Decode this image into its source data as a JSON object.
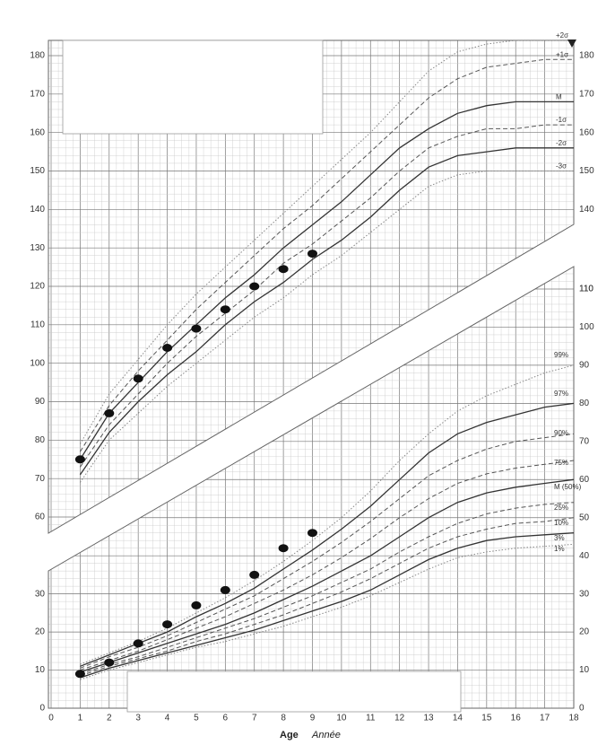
{
  "chart_data": {
    "type": "line",
    "title": "",
    "xlabel": "Age",
    "xlabel_alt": "Année",
    "xlim": [
      0,
      18
    ],
    "x_ticks": [
      "0",
      "1",
      "2",
      "3",
      "4",
      "5",
      "6",
      "7",
      "8",
      "9",
      "10",
      "11",
      "12",
      "13",
      "14",
      "15",
      "16",
      "17",
      "18"
    ],
    "grid": true,
    "panels": [
      {
        "id": "height",
        "ylim": [
          55,
          185
        ],
        "left_ticks": [
          "60",
          "70",
          "80",
          "90",
          "100",
          "110",
          "120",
          "130",
          "140",
          "150",
          "160",
          "170",
          "180"
        ],
        "right_ticks": [
          "110",
          "140",
          "150",
          "160",
          "170",
          "180"
        ],
        "extra_right_ticks_lower": [
          "40",
          "50",
          "60",
          "70",
          "80",
          "90",
          "100",
          "110"
        ],
        "x": [
          1,
          2,
          3,
          4,
          5,
          6,
          7,
          8,
          9,
          10,
          11,
          12,
          13,
          14,
          15,
          16,
          17,
          18
        ],
        "series": [
          {
            "name": "+2σ",
            "values": [
              79,
              92,
              101,
              110,
              118,
              125,
              132,
              139,
              146,
              153,
              160,
              168,
              176,
              181,
              183,
              184,
              184,
              184
            ]
          },
          {
            "name": "+1σ",
            "values": [
              77,
              89,
              98,
              106,
              114,
              121,
              128,
              135,
              141,
              148,
              155,
              162,
              169,
              174,
              177,
              178,
              179,
              179
            ]
          },
          {
            "name": "M",
            "values": [
              75,
              87,
              95,
              103,
              110,
              117,
              123,
              130,
              136,
              142,
              149,
              156,
              161,
              165,
              167,
              168,
              168,
              168
            ]
          },
          {
            "name": "-1σ",
            "values": [
              73,
              84,
              92,
              100,
              107,
              113,
              119,
              126,
              131,
              137,
              143,
              150,
              156,
              159,
              161,
              161,
              162,
              162
            ]
          },
          {
            "name": "-2σ",
            "values": [
              71,
              82,
              90,
              97,
              103,
              110,
              116,
              121,
              127,
              132,
              138,
              145,
              151,
              154,
              155,
              156,
              156,
              156
            ]
          },
          {
            "name": "-3σ",
            "values": [
              69,
              80,
              87,
              94,
              100,
              106,
              112,
              117,
              123,
              128,
              134,
              140,
              146,
              149,
              150,
              150,
              150,
              150
            ]
          }
        ],
        "points": {
          "x": [
            1,
            2,
            3,
            4,
            5,
            6,
            7,
            8,
            9
          ],
          "y": [
            75,
            87,
            96,
            104,
            109,
            114,
            120,
            124.5,
            128.5
          ]
        }
      },
      {
        "id": "weight",
        "ylim": [
          0,
          110
        ],
        "left_ticks": [
          "0",
          "10",
          "20",
          "30"
        ],
        "right_ticks": [
          "0",
          "10",
          "20",
          "30",
          "40",
          "50",
          "60",
          "70",
          "80",
          "90",
          "100",
          "110"
        ],
        "x": [
          1,
          2,
          3,
          4,
          5,
          6,
          7,
          8,
          9,
          10,
          11,
          12,
          13,
          14,
          15,
          16,
          17,
          18
        ],
        "series": [
          {
            "name": "99%",
            "values": [
              11.5,
              14.5,
              17.5,
              21,
              25,
              29,
              33.5,
              38.5,
              44,
              50,
              57,
              65,
              72,
              78,
              82,
              85,
              88,
              90
            ]
          },
          {
            "name": "97%",
            "values": [
              11,
              14,
              17,
              20,
              24,
              27.5,
              31.5,
              36.5,
              41.5,
              47,
              53,
              60,
              67,
              72,
              75,
              77,
              79,
              80
            ]
          },
          {
            "name": "90%",
            "values": [
              10.5,
              13.5,
              16,
              19,
              22.5,
              26,
              29.5,
              34,
              38.5,
              43.5,
              49,
              55,
              61,
              65,
              68,
              70,
              71,
              72
            ]
          },
          {
            "name": "75%",
            "values": [
              10,
              12.5,
              15,
              18,
              21,
              24,
              27.5,
              31,
              35,
              39.5,
              44.5,
              50,
              55,
              59,
              61.5,
              63,
              64,
              65
            ]
          },
          {
            "name": "M (50%)",
            "values": [
              9.5,
              12,
              14.5,
              17,
              19.5,
              22,
              25,
              28.5,
              32,
              36,
              40,
              45,
              50,
              54,
              56.5,
              58,
              59,
              60
            ]
          },
          {
            "name": "25%",
            "values": [
              9,
              11.5,
              13.5,
              16,
              18.5,
              21,
              23.5,
              26.5,
              29.5,
              33,
              36.5,
              41,
              45,
              48.5,
              51,
              52.5,
              53.5,
              54
            ]
          },
          {
            "name": "10%",
            "values": [
              8.5,
              11,
              13,
              15,
              17.5,
              19.5,
              22,
              24.5,
              27.5,
              30.5,
              34,
              38,
              42,
              45,
              47,
              48.5,
              49,
              50
            ]
          },
          {
            "name": "3%",
            "values": [
              8,
              10.5,
              12.5,
              14.5,
              16.5,
              18.5,
              20.5,
              23,
              25.5,
              28,
              31,
              35,
              39,
              42,
              44,
              45,
              45.5,
              46
            ]
          },
          {
            "name": "1%",
            "values": [
              7.5,
              10,
              12,
              14,
              16,
              17.5,
              19.5,
              21.5,
              24,
              26.5,
              29.5,
              33,
              36.5,
              39.5,
              41,
              42,
              42.5,
              43
            ]
          }
        ],
        "points": {
          "x": [
            1,
            2,
            3,
            4,
            5,
            6,
            7,
            8,
            9
          ],
          "y": [
            9,
            12,
            17,
            22,
            27,
            31,
            35,
            42,
            46
          ]
        }
      }
    ]
  }
}
